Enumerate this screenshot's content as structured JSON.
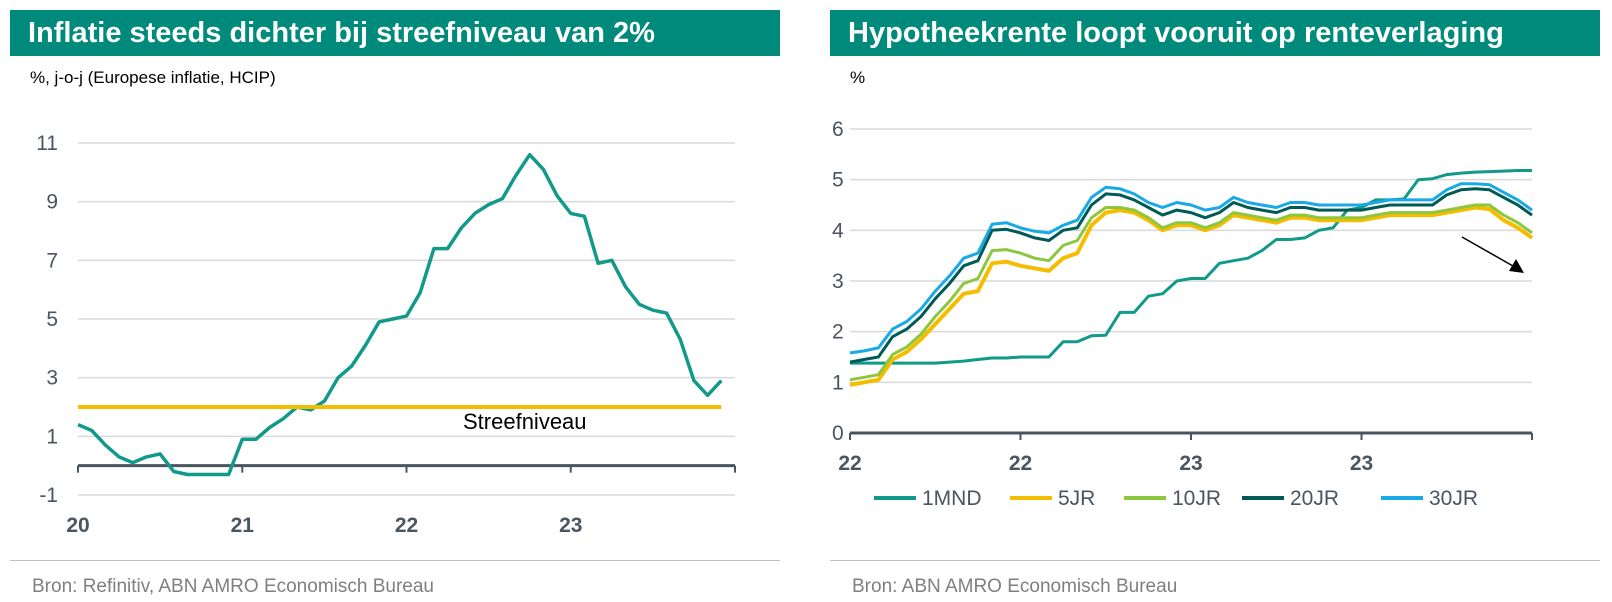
{
  "chart_data": [
    {
      "type": "line",
      "title": "Inflatie steeds dichter bij streefniveau van 2%",
      "subtitle": "%, j-o-j (Europese inflatie, HCIP)",
      "source": "Bron: Refinitiv, ABN AMRO Economisch Bureau",
      "xlabel": "",
      "ylabel": "",
      "x_ticks": [
        "20",
        "21",
        "22",
        "23"
      ],
      "y_ticks": [
        -1,
        1,
        3,
        5,
        7,
        9,
        11
      ],
      "ylim": [
        -1,
        11
      ],
      "grid": true,
      "annotation": "Streefniveau",
      "series": [
        {
          "color": "#11998a",
          "x": [
            2020.0,
            2020.0833,
            2020.1667,
            2020.25,
            2020.3333,
            2020.4167,
            2020.5,
            2020.5833,
            2020.6667,
            2020.75,
            2020.8333,
            2020.9167,
            2021.0,
            2021.0833,
            2021.1667,
            2021.25,
            2021.3333,
            2021.4167,
            2021.5,
            2021.5833,
            2021.6667,
            2021.75,
            2021.8333,
            2021.9167,
            2022.0,
            2022.0833,
            2022.1667,
            2022.25,
            2022.3333,
            2022.4167,
            2022.5,
            2022.5833,
            2022.6667,
            2022.75,
            2022.8333,
            2022.9167,
            2023.0,
            2023.0833,
            2023.1667,
            2023.25,
            2023.3333,
            2023.4167,
            2023.5,
            2023.5833,
            2023.6667,
            2023.75,
            2023.8333,
            2023.9167
          ],
          "values": [
            1.4,
            1.2,
            0.7,
            0.3,
            0.1,
            0.3,
            0.4,
            -0.2,
            -0.3,
            -0.3,
            -0.3,
            -0.3,
            0.9,
            0.9,
            1.3,
            1.6,
            2.0,
            1.9,
            2.2,
            3.0,
            3.4,
            4.1,
            4.9,
            5.0,
            5.1,
            5.9,
            7.4,
            7.4,
            8.1,
            8.6,
            8.9,
            9.1,
            9.9,
            10.6,
            10.1,
            9.2,
            8.6,
            8.5,
            6.9,
            7.0,
            6.1,
            5.5,
            5.3,
            5.2,
            4.3,
            2.9,
            2.4,
            2.9
          ]
        },
        {
          "color": "#f5bd00",
          "x": [
            2020.0,
            2023.9167
          ],
          "values": [
            2.0,
            2.0
          ]
        }
      ]
    },
    {
      "type": "line",
      "title": "Hypotheekrente loopt vooruit op renteverlaging",
      "subtitle": "%",
      "source": "Bron: ABN AMRO Economisch Bureau",
      "x_ticks": [
        "22",
        "22",
        "23",
        "23"
      ],
      "y_ticks": [
        0,
        1,
        2,
        3,
        4,
        5,
        6
      ],
      "ylim": [
        0,
        6
      ],
      "legend": "bottom",
      "grid": true,
      "x": [
        2022.0,
        2022.0417,
        2022.0833,
        2022.125,
        2022.1667,
        2022.2083,
        2022.25,
        2022.2917,
        2022.3333,
        2022.375,
        2022.4167,
        2022.4583,
        2022.5,
        2022.5417,
        2022.5833,
        2022.625,
        2022.6667,
        2022.7083,
        2022.75,
        2022.7917,
        2022.8333,
        2022.875,
        2022.9167,
        2022.9583,
        2023.0,
        2023.0417,
        2023.0833,
        2023.125,
        2023.1667,
        2023.2083,
        2023.25,
        2023.2917,
        2023.3333,
        2023.375,
        2023.4167,
        2023.4583,
        2023.5,
        2023.5417,
        2023.5833,
        2023.625,
        2023.6667,
        2023.7083,
        2023.75,
        2023.7917,
        2023.8333,
        2023.875,
        2023.9167,
        2023.9583,
        2024.0
      ],
      "series": [
        {
          "name": "1MND",
          "color": "#11998a",
          "values": [
            1.38,
            1.38,
            1.38,
            1.38,
            1.38,
            1.38,
            1.38,
            1.4,
            1.42,
            1.45,
            1.48,
            1.48,
            1.5,
            1.5,
            1.5,
            1.8,
            1.8,
            1.92,
            1.93,
            2.38,
            2.38,
            2.7,
            2.75,
            3.0,
            3.05,
            3.05,
            3.35,
            3.4,
            3.45,
            3.6,
            3.82,
            3.82,
            3.85,
            4.0,
            4.05,
            4.4,
            4.45,
            4.6,
            4.6,
            4.62,
            5.0,
            5.02,
            5.1,
            5.13,
            5.15,
            5.16,
            5.17,
            5.18,
            5.18
          ]
        },
        {
          "name": "5JR",
          "color": "#f5bd00",
          "values": [
            0.95,
            1.0,
            1.05,
            1.45,
            1.6,
            1.85,
            2.15,
            2.45,
            2.75,
            2.8,
            3.35,
            3.38,
            3.3,
            3.25,
            3.2,
            3.45,
            3.55,
            4.1,
            4.35,
            4.4,
            4.35,
            4.2,
            4.0,
            4.1,
            4.1,
            4.0,
            4.1,
            4.3,
            4.25,
            4.2,
            4.15,
            4.25,
            4.25,
            4.2,
            4.2,
            4.2,
            4.2,
            4.25,
            4.3,
            4.3,
            4.3,
            4.3,
            4.35,
            4.4,
            4.45,
            4.42,
            4.2,
            4.05,
            3.85
          ]
        },
        {
          "name": "10JR",
          "color": "#8dc63f",
          "values": [
            1.05,
            1.1,
            1.15,
            1.55,
            1.7,
            1.95,
            2.3,
            2.6,
            2.95,
            3.05,
            3.6,
            3.62,
            3.55,
            3.45,
            3.4,
            3.7,
            3.8,
            4.25,
            4.45,
            4.45,
            4.4,
            4.25,
            4.05,
            4.15,
            4.15,
            4.05,
            4.15,
            4.35,
            4.3,
            4.25,
            4.2,
            4.3,
            4.3,
            4.25,
            4.25,
            4.25,
            4.25,
            4.3,
            4.35,
            4.35,
            4.35,
            4.35,
            4.4,
            4.45,
            4.5,
            4.5,
            4.3,
            4.15,
            3.95
          ]
        },
        {
          "name": "20JR",
          "color": "#005a56",
          "values": [
            1.4,
            1.45,
            1.5,
            1.9,
            2.05,
            2.3,
            2.65,
            2.95,
            3.3,
            3.4,
            4.0,
            4.02,
            3.95,
            3.85,
            3.8,
            4.0,
            4.05,
            4.5,
            4.72,
            4.7,
            4.6,
            4.45,
            4.3,
            4.4,
            4.35,
            4.25,
            4.35,
            4.55,
            4.45,
            4.4,
            4.35,
            4.45,
            4.45,
            4.4,
            4.4,
            4.4,
            4.4,
            4.45,
            4.5,
            4.5,
            4.5,
            4.5,
            4.7,
            4.8,
            4.82,
            4.8,
            4.65,
            4.5,
            4.3
          ]
        },
        {
          "name": "30JR",
          "color": "#18a9e6",
          "values": [
            1.58,
            1.62,
            1.68,
            2.05,
            2.2,
            2.45,
            2.8,
            3.1,
            3.45,
            3.55,
            4.12,
            4.15,
            4.05,
            3.98,
            3.95,
            4.1,
            4.2,
            4.65,
            4.85,
            4.82,
            4.72,
            4.55,
            4.45,
            4.55,
            4.5,
            4.4,
            4.45,
            4.65,
            4.55,
            4.5,
            4.45,
            4.55,
            4.55,
            4.5,
            4.5,
            4.5,
            4.5,
            4.55,
            4.6,
            4.6,
            4.6,
            4.6,
            4.8,
            4.92,
            4.92,
            4.9,
            4.75,
            4.6,
            4.4
          ]
        }
      ]
    }
  ]
}
